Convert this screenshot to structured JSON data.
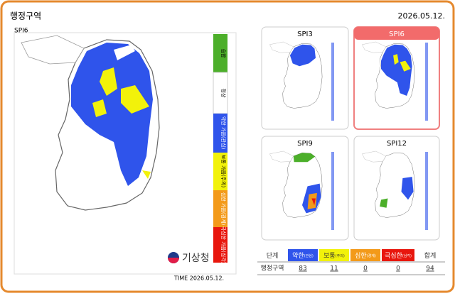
{
  "header": {
    "title": "행정구역",
    "date": "2026.05.12."
  },
  "main_map": {
    "label": "SPI6",
    "legend": [
      "습함",
      "정상",
      "약한 가뭄(관심)",
      "보통 가뭄(주의)",
      "심한 가뭄(경계)",
      "극심한 가뭄(심각)"
    ],
    "logo": "기상청",
    "time": "TIME 2026.05.12."
  },
  "thumbnails": [
    "SPI3",
    "SPI6",
    "SPI9",
    "SPI12"
  ],
  "table": {
    "header": [
      {
        "name": "단계"
      },
      {
        "name": "약한",
        "sub": "(관심)"
      },
      {
        "name": "보통",
        "sub": "(주의)"
      },
      {
        "name": "심한",
        "sub": "(경계)"
      },
      {
        "name": "극심한",
        "sub": "(심각)"
      },
      {
        "name": "합계"
      }
    ],
    "rows": [
      [
        "행정구역",
        "83",
        "11",
        "0",
        "0",
        "94"
      ]
    ]
  }
}
